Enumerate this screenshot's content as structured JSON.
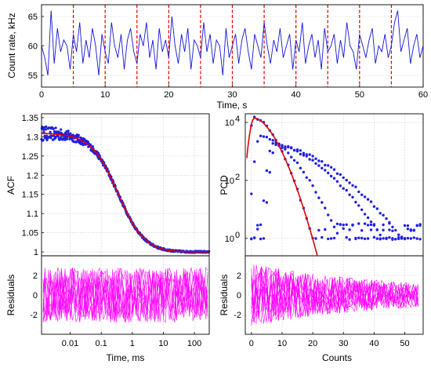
{
  "colors": {
    "trace": "#1414d6",
    "marker_line": "#e00000",
    "points": "#2020e0",
    "fit": "#e00000",
    "residuals": "#ff00ff"
  },
  "chart_data": [
    {
      "id": "count-rate",
      "type": "line",
      "xlabel": "Time, s",
      "ylabel": "Count rate, kHz",
      "xlim": [
        0,
        60
      ],
      "ylim": [
        53,
        67
      ],
      "x_ticks": [
        "0",
        "10",
        "20",
        "30",
        "40",
        "50",
        "60"
      ],
      "x_tick_values": [
        0,
        10,
        20,
        30,
        40,
        50,
        60
      ],
      "y_ticks": [
        "55",
        "60",
        "65"
      ],
      "y_tick_values": [
        55,
        60,
        65
      ],
      "grid": true,
      "series": [
        {
          "x": [
            0,
            0.5,
            1,
            1.5,
            2,
            2.5,
            3,
            3.5,
            4,
            4.5,
            5,
            5.5,
            6,
            6.5,
            7,
            7.5,
            8,
            8.5,
            9,
            9.5,
            10,
            10.5,
            11,
            11.5,
            12,
            12.5,
            13,
            13.5,
            14,
            14.5,
            15,
            15.5,
            16,
            16.5,
            17,
            17.5,
            18,
            18.5,
            19,
            19.5,
            20,
            20.5,
            21,
            21.5,
            22,
            22.5,
            23,
            23.5,
            24,
            24.5,
            25,
            25.5,
            26,
            26.5,
            27,
            27.5,
            28,
            28.5,
            29,
            29.5,
            30,
            30.5,
            31,
            31.5,
            32,
            32.5,
            33,
            33.5,
            34,
            34.5,
            35,
            35.5,
            36,
            36.5,
            37,
            37.5,
            38,
            38.5,
            39,
            39.5,
            40,
            40.5,
            41,
            41.5,
            42,
            42.5,
            43,
            43.5,
            44,
            44.5,
            45,
            45.5,
            46,
            46.5,
            47,
            47.5,
            48,
            48.5,
            49,
            49.5,
            50,
            50.5,
            51,
            51.5,
            52,
            52.5,
            53,
            53.5,
            54,
            54.5,
            55,
            55.5,
            56,
            56.5,
            57,
            57.5,
            58,
            58.5,
            59,
            59.5,
            60
          ],
          "y": [
            60,
            58,
            55,
            66,
            57,
            63,
            59,
            61,
            60,
            56,
            62,
            59,
            64,
            57,
            61,
            58,
            63,
            60,
            55,
            62,
            59,
            57,
            64,
            60,
            58,
            62,
            56,
            61,
            63,
            59,
            57,
            62,
            60,
            64,
            58,
            61,
            56,
            63,
            59,
            61,
            58,
            65,
            60,
            57,
            62,
            59,
            63,
            56,
            61,
            60,
            58,
            64,
            59,
            62,
            57,
            61,
            60,
            55,
            63,
            58,
            60,
            62,
            57,
            61,
            63,
            59,
            56,
            62,
            60,
            58,
            64,
            60,
            57,
            61,
            59,
            63,
            58,
            60,
            62,
            56,
            61,
            59,
            64,
            57,
            60,
            62,
            58,
            61,
            56,
            63,
            59,
            60,
            62,
            57,
            61,
            58,
            64,
            60,
            59,
            56,
            62,
            60,
            58,
            61,
            63,
            57,
            60,
            59,
            62,
            58,
            60,
            64,
            66,
            59,
            61,
            63,
            57,
            60,
            62,
            58,
            60
          ]
        }
      ],
      "markers": [
        5,
        10,
        15,
        20,
        25,
        30,
        35,
        40,
        45,
        50,
        55
      ]
    },
    {
      "id": "acf",
      "type": "scatter",
      "xlabel": "Time, ms",
      "ylabel": "ACF",
      "xscale": "log",
      "xlim": [
        0.0012,
        300
      ],
      "ylim": [
        0.99,
        1.36
      ],
      "y_ticks": [
        "1",
        "1.05",
        "1.1",
        "1.15",
        "1.2",
        "1.25",
        "1.3",
        "1.35"
      ],
      "y_tick_values": [
        1,
        1.05,
        1.1,
        1.15,
        1.2,
        1.25,
        1.3,
        1.35
      ],
      "x_ticks": [
        "0.01",
        "0.1",
        "1",
        "10",
        "100"
      ],
      "x_tick_values": [
        0.01,
        0.1,
        1,
        10,
        100
      ],
      "grid": true,
      "fit": {
        "amplitude": 0.31,
        "baseline": 1.0,
        "tau_ms": 0.35
      },
      "residual_ylim": [
        -4,
        4
      ],
      "residual_yticks": [
        "2",
        "0",
        "-2"
      ],
      "residual_ytick_values": [
        2,
        0,
        -2
      ],
      "residual_ylabel": "Residuals"
    },
    {
      "id": "pcd",
      "type": "scatter",
      "xlabel": "Counts",
      "ylabel": "PCD",
      "yscale": "log",
      "xlim": [
        -2,
        56
      ],
      "ylim_exp": [
        -0.6,
        4.3
      ],
      "x_ticks": [
        "0",
        "10",
        "20",
        "30",
        "40",
        "50"
      ],
      "x_tick_values": [
        0,
        10,
        20,
        30,
        40,
        50
      ],
      "y_ticks": [
        "10^0",
        "10^2",
        "10^4"
      ],
      "y_tick_exponents": [
        0,
        2,
        4
      ],
      "grid": true,
      "curves": [
        {
          "peak_x": 1,
          "peak_log": 4.15,
          "fall_x": 22
        },
        {
          "peak_x": 3,
          "peak_log": 3.55,
          "fall_x": 32
        },
        {
          "peak_x": 7,
          "peak_log": 3.25,
          "fall_x": 48
        },
        {
          "peak_x": 8,
          "peak_log": 3.2,
          "fall_x": 55
        }
      ],
      "residual_ylim": [
        -4,
        4
      ],
      "residual_yticks": [
        "2",
        "0",
        "-2"
      ],
      "residual_ytick_values": [
        2,
        0,
        -2
      ],
      "residual_ylabel": "Residuals"
    }
  ]
}
